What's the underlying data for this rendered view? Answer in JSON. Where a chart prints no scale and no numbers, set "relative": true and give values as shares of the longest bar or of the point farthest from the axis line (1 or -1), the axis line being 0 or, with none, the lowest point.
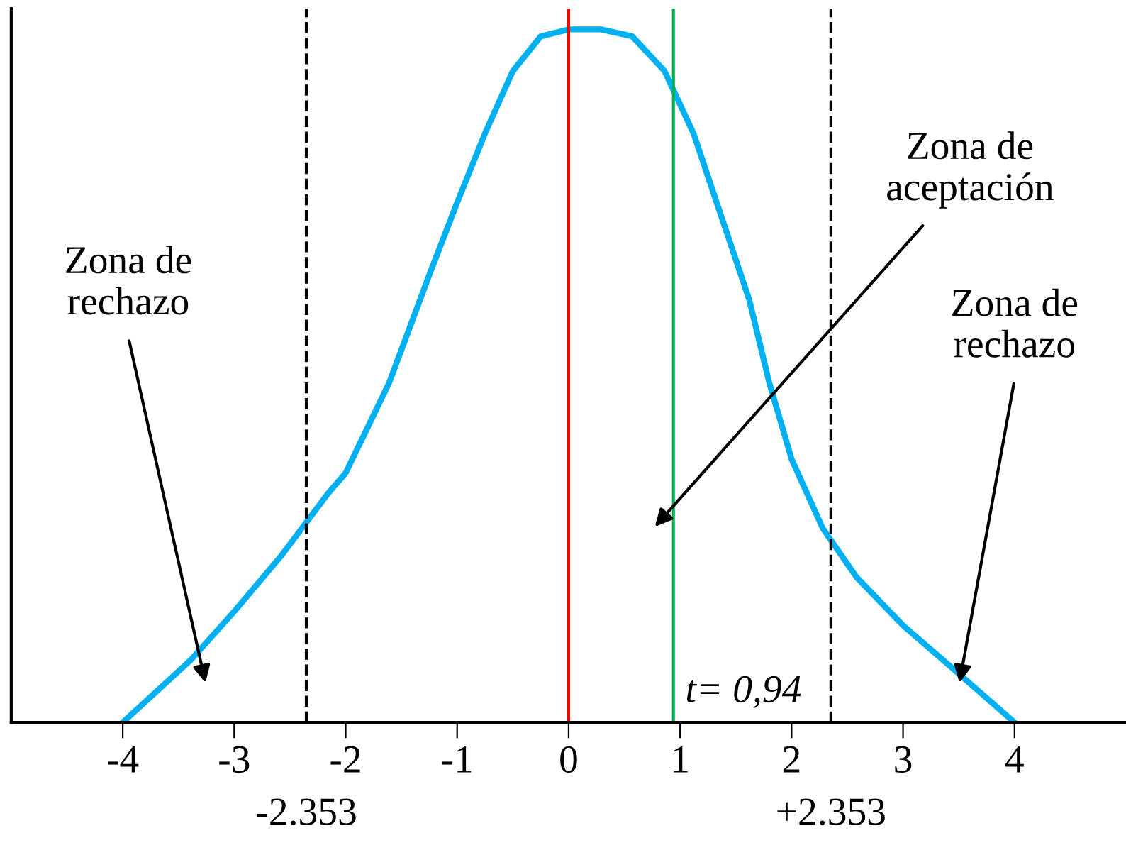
{
  "chart_data": {
    "type": "line",
    "relative": true,
    "x": [
      -4,
      -3.39,
      -3,
      -2.58,
      -2.16,
      -2,
      -1.61,
      -1.24,
      -1,
      -0.75,
      -0.5,
      -0.25,
      0,
      0.29,
      0.57,
      0.86,
      1.12,
      1.37,
      1.62,
      1.8,
      2,
      2.28,
      2.58,
      3,
      3.43,
      4
    ],
    "series": [
      {
        "color": "#00b0f0",
        "values": [
          0,
          0.09,
          0.16,
          0.24,
          0.33,
          0.36,
          0.49,
          0.65,
          0.75,
          0.85,
          0.94,
          0.99,
          1,
          1,
          0.99,
          0.94,
          0.85,
          0.73,
          0.61,
          0.49,
          0.38,
          0.28,
          0.21,
          0.14,
          0.08,
          0
        ]
      }
    ],
    "xlim": [
      -5,
      5
    ],
    "xticks": [
      -4,
      -3,
      -2,
      -1,
      0,
      1,
      2,
      3,
      4
    ],
    "tick_labels": "x",
    "grid": false,
    "marker": "none",
    "line_style": "solid",
    "ref_lines": [
      {
        "axis": "x",
        "value": -2.353,
        "label": "-2.353",
        "color": "#000000",
        "line_style": "dashed"
      },
      {
        "axis": "x",
        "value": 2.353,
        "label": "+2.353",
        "color": "#000000",
        "line_style": "dashed"
      },
      {
        "axis": "x",
        "value": 0,
        "label": null,
        "color": "#ff0000",
        "line_style": "solid"
      },
      {
        "axis": "x",
        "value": 0.94,
        "label": "t= 0,94",
        "color": "#00b050",
        "line_style": "solid"
      }
    ],
    "annotations": [
      "Zona de\nrechazo",
      "Zona de\naceptación",
      "Zona de\nrechazo"
    ]
  }
}
